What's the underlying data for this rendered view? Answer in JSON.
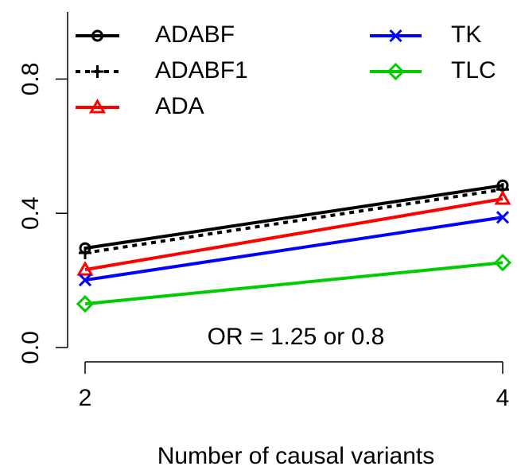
{
  "chart_data": {
    "type": "line",
    "x": [
      2,
      4
    ],
    "series": [
      {
        "name": "ADABF",
        "color": "#000000",
        "marker": "circle",
        "dash": "solid",
        "values": [
          0.296,
          0.483
        ]
      },
      {
        "name": "ADABF1",
        "color": "#000000",
        "marker": "plus",
        "dash": "dotted",
        "values": [
          0.282,
          0.471
        ]
      },
      {
        "name": "ADA",
        "color": "#ff0000",
        "marker": "triangle",
        "dash": "solid",
        "values": [
          0.232,
          0.443
        ]
      },
      {
        "name": "TK",
        "color": "#0000ff",
        "marker": "cross",
        "dash": "solid",
        "values": [
          0.201,
          0.388
        ]
      },
      {
        "name": "TLC",
        "color": "#00cd00",
        "marker": "diamond",
        "dash": "solid",
        "values": [
          0.13,
          0.253
        ]
      }
    ],
    "annotation": "OR = 1.25 or 0.8",
    "xlabel": "Number of causal variants",
    "xlim": [
      2,
      4
    ],
    "xticks": [
      2,
      4
    ],
    "ylim": [
      0,
      1
    ],
    "yticks": [
      {
        "value": 0,
        "label": "0.0"
      },
      0.4,
      0.8
    ],
    "legend": "top-left"
  }
}
